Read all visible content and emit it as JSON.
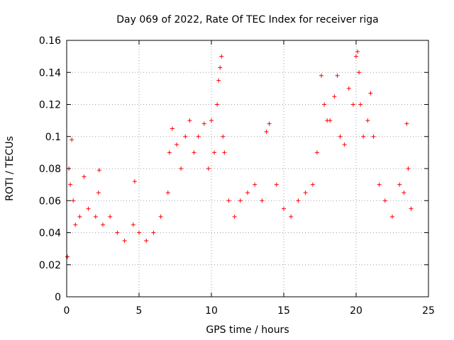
{
  "chart_data": {
    "type": "scatter",
    "title": "Day 069 of 2022, Rate Of TEC Index for receiver riga",
    "xlabel": "GPS time / hours",
    "ylabel": "ROTI / TECUs",
    "xlim": [
      0,
      25
    ],
    "ylim": [
      0,
      0.16
    ],
    "xticks": [
      "0",
      "5",
      "10",
      "15",
      "20",
      "25"
    ],
    "yticks": [
      "0",
      "0.02",
      "0.04",
      "0.06",
      "0.08",
      "0.1",
      "0.12",
      "0.14",
      "0.16"
    ],
    "grid": true,
    "marker": "+",
    "color": "#ff0000",
    "series": [
      {
        "x": [
          0.05,
          0.15,
          0.25,
          0.35,
          0.45,
          0.6,
          0.9,
          1.2,
          1.5,
          2.0,
          2.2,
          2.25,
          2.5,
          3.0,
          3.5,
          4.0,
          4.6,
          4.7,
          5.0,
          5.5,
          6.0,
          6.5,
          7.0,
          7.1,
          7.3,
          7.6,
          7.9,
          8.2,
          8.5,
          8.8,
          9.1,
          9.5,
          9.8,
          10.0,
          10.2,
          10.4,
          10.5,
          10.6,
          10.7,
          10.8,
          10.9,
          11.2,
          11.6,
          12.0,
          12.5,
          13.0,
          13.5,
          13.8,
          14.0,
          14.5,
          15.0,
          15.5,
          16.0,
          16.5,
          17.0,
          17.3,
          17.6,
          17.8,
          18.0,
          18.2,
          18.5,
          18.7,
          18.9,
          19.2,
          19.5,
          19.8,
          20.0,
          20.1,
          20.2,
          20.3,
          20.5,
          20.8,
          21.0,
          21.2,
          21.6,
          22.0,
          22.5,
          23.0,
          23.3,
          23.5,
          23.6,
          23.8
        ],
        "y": [
          0.025,
          0.08,
          0.07,
          0.098,
          0.06,
          0.045,
          0.05,
          0.075,
          0.055,
          0.05,
          0.065,
          0.079,
          0.045,
          0.05,
          0.04,
          0.035,
          0.045,
          0.072,
          0.04,
          0.035,
          0.04,
          0.05,
          0.065,
          0.09,
          0.105,
          0.095,
          0.08,
          0.1,
          0.11,
          0.09,
          0.1,
          0.108,
          0.08,
          0.11,
          0.09,
          0.12,
          0.135,
          0.143,
          0.15,
          0.1,
          0.09,
          0.06,
          0.05,
          0.06,
          0.065,
          0.07,
          0.06,
          0.103,
          0.108,
          0.07,
          0.055,
          0.05,
          0.06,
          0.065,
          0.07,
          0.09,
          0.138,
          0.12,
          0.11,
          0.11,
          0.125,
          0.138,
          0.1,
          0.095,
          0.13,
          0.12,
          0.15,
          0.153,
          0.14,
          0.12,
          0.1,
          0.11,
          0.127,
          0.1,
          0.07,
          0.06,
          0.05,
          0.07,
          0.065,
          0.108,
          0.08,
          0.055
        ]
      }
    ]
  }
}
